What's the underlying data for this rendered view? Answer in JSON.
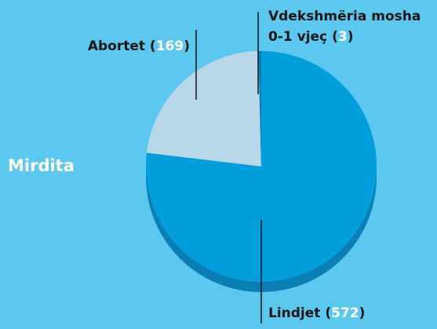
{
  "chart_data": {
    "type": "pie",
    "title": "Mirdita",
    "categories": [
      "Lindjet",
      "Abortet",
      "Vdekshmëria mosha 0-1 vjeç"
    ],
    "values": [
      572,
      169,
      3
    ],
    "colors": [
      "#009fdc",
      "#b8d8ea",
      "#0b7fb5"
    ]
  }
}
